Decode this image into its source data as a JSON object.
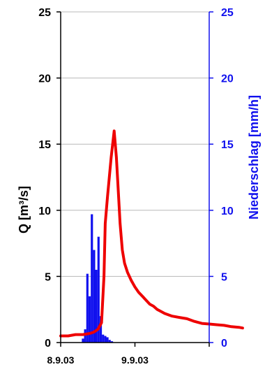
{
  "chart_data": {
    "type": "line",
    "title": "",
    "grid": true,
    "legend": "none",
    "x_axis": {
      "unit": "days",
      "range": [
        "8.9.03 00:00",
        "10.9.03 00:00"
      ],
      "tick_labels": [
        "8.9.03",
        "9.9.03"
      ]
    },
    "y_left": {
      "label": "Q [m³/s]",
      "range": [
        0,
        25
      ],
      "ticks": [
        "0",
        "5",
        "10",
        "15",
        "20",
        "25"
      ],
      "color": "#000000"
    },
    "y_right": {
      "label": "Niederschlag [mm/h]",
      "range": [
        0,
        25
      ],
      "ticks": [
        "0",
        "5",
        "10",
        "15",
        "20",
        "25"
      ],
      "color": "#1010ee"
    },
    "series": [
      {
        "kind": "line",
        "axis": "left",
        "color": "#ee0000",
        "points": [
          [
            "8.9.03 00:00",
            0.5
          ],
          [
            "8.9.03 02:24",
            0.5
          ],
          [
            "8.9.03 04:48",
            0.6
          ],
          [
            "8.9.03 07:12",
            0.6
          ],
          [
            "8.9.03 09:36",
            0.7
          ],
          [
            "8.9.03 10:48",
            0.8
          ],
          [
            "8.9.03 12:00",
            1.0
          ],
          [
            "8.9.03 13:12",
            1.5
          ],
          [
            "8.9.03 14:00",
            5.0
          ],
          [
            "8.9.03 14:24",
            9.0
          ],
          [
            "8.9.03 15:07",
            11.0
          ],
          [
            "8.9.03 16:19",
            14.0
          ],
          [
            "8.9.03 17:17",
            16.0
          ],
          [
            "8.9.03 18:00",
            14.0
          ],
          [
            "8.9.03 18:43",
            11.0
          ],
          [
            "8.9.03 19:12",
            9.0
          ],
          [
            "8.9.03 19:55",
            7.0
          ],
          [
            "8.9.03 20:38",
            6.0
          ],
          [
            "8.9.03 21:36",
            5.3
          ],
          [
            "8.9.03 22:48",
            4.7
          ],
          [
            "9.9.03 00:00",
            4.2
          ],
          [
            "9.9.03 01:12",
            3.8
          ],
          [
            "9.9.03 02:24",
            3.5
          ],
          [
            "9.9.03 03:36",
            3.2
          ],
          [
            "9.9.03 04:48",
            2.9
          ],
          [
            "9.9.03 06:00",
            2.75
          ],
          [
            "9.9.03 07:12",
            2.5
          ],
          [
            "9.9.03 08:24",
            2.35
          ],
          [
            "9.9.03 09:36",
            2.2
          ],
          [
            "9.9.03 12:00",
            2.0
          ],
          [
            "9.9.03 14:24",
            1.9
          ],
          [
            "9.9.03 16:48",
            1.8
          ],
          [
            "9.9.03 19:12",
            1.6
          ],
          [
            "9.9.03 21:36",
            1.45
          ],
          [
            "10.9.03 00:00",
            1.4
          ],
          [
            "10.9.03 02:24",
            1.35
          ],
          [
            "10.9.03 04:48",
            1.3
          ],
          [
            "10.9.03 07:12",
            1.2
          ],
          [
            "10.9.03 09:36",
            1.15
          ],
          [
            "10.9.03 10:48",
            1.1
          ]
        ]
      },
      {
        "kind": "bar",
        "axis": "right",
        "color": "#1010ee",
        "points": [
          [
            "8.9.03 07:12",
            0.3
          ],
          [
            "8.9.03 07:55",
            1.0
          ],
          [
            "8.9.03 08:38",
            5.2
          ],
          [
            "8.9.03 09:22",
            3.5
          ],
          [
            "8.9.03 10:05",
            9.7
          ],
          [
            "8.9.03 10:48",
            7.0
          ],
          [
            "8.9.03 11:31",
            5.5
          ],
          [
            "8.9.03 12:14",
            8.0
          ],
          [
            "8.9.03 12:58",
            2.0
          ],
          [
            "8.9.03 13:41",
            0.6
          ],
          [
            "8.9.03 14:24",
            0.5
          ],
          [
            "8.9.03 15:07",
            0.4
          ],
          [
            "8.9.03 15:50",
            0.2
          ],
          [
            "8.9.03 16:34",
            0.1
          ]
        ]
      }
    ]
  }
}
